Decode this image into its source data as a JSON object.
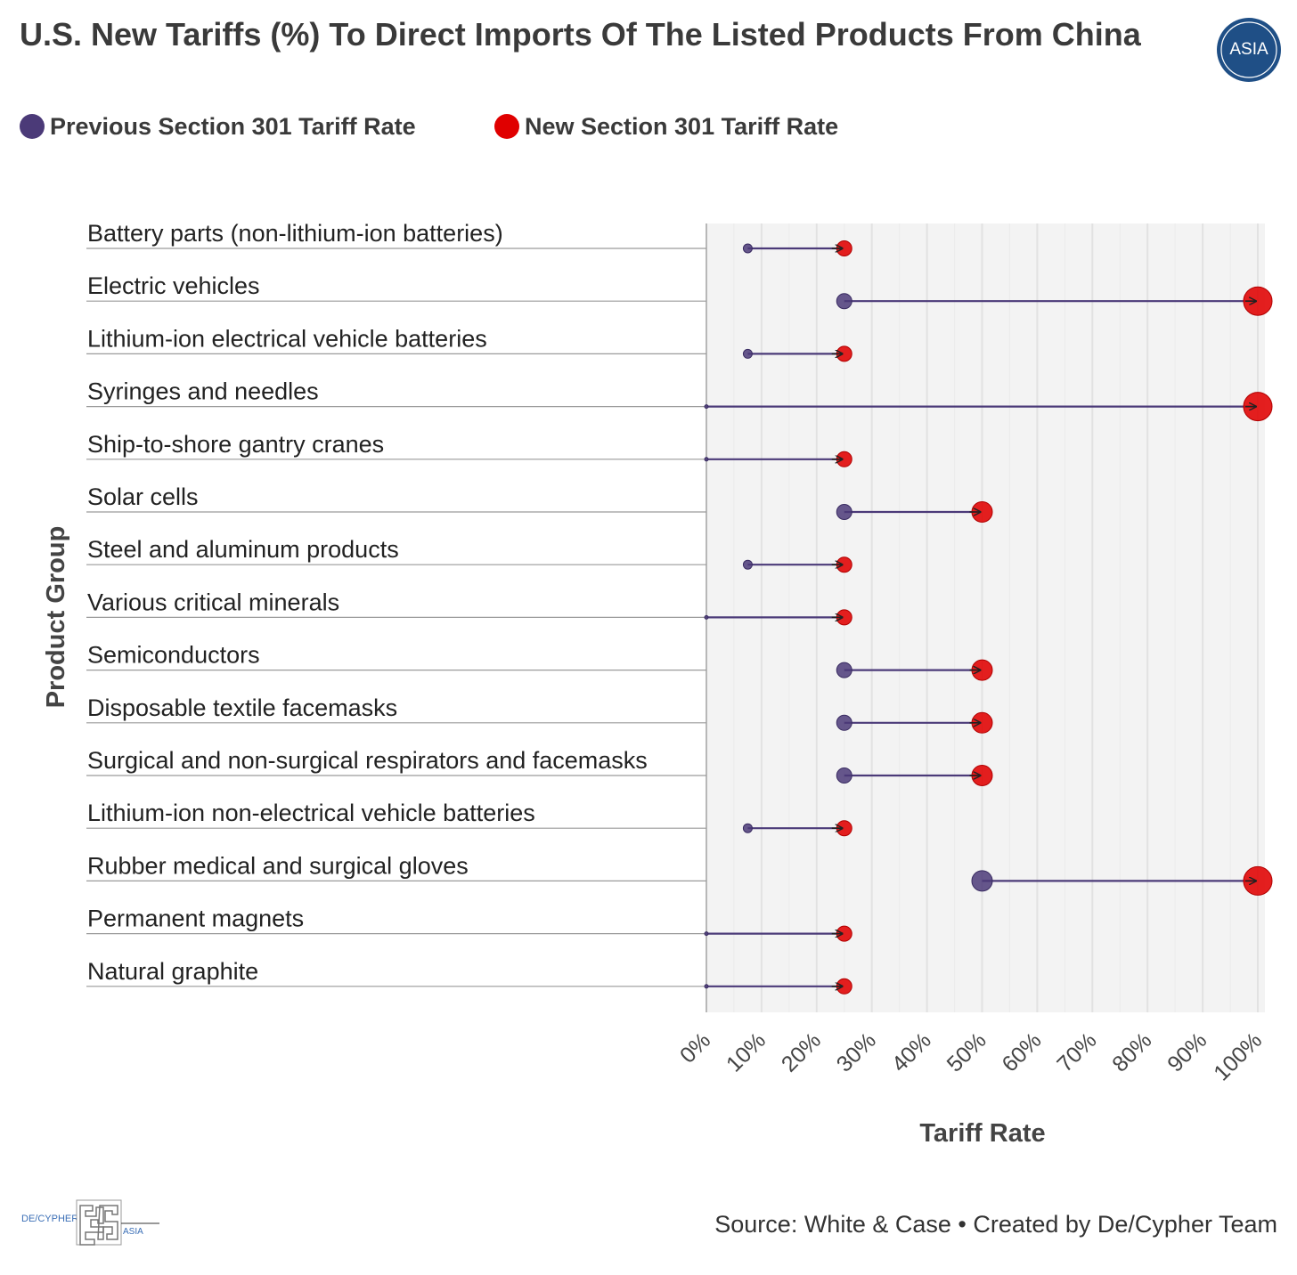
{
  "header": {
    "title": "U.S. New Tariffs (%) To Direct Imports Of The Listed Products From China",
    "logo_text": "ASIA"
  },
  "legend": [
    {
      "label": "Previous Section 301 Tariff Rate",
      "color": "#4b3a78"
    },
    {
      "label": "New Section 301 Tariff Rate",
      "color": "#e00000"
    }
  ],
  "chart_data": {
    "type": "dumbbell",
    "title": "U.S. New Tariffs (%) To Direct Imports Of The Listed Products From China",
    "xlabel": "Tariff Rate",
    "ylabel": "Product Group",
    "xlim": [
      0,
      100
    ],
    "x_ticks": [
      "0%",
      "10%",
      "20%",
      "30%",
      "40%",
      "50%",
      "60%",
      "70%",
      "80%",
      "90%",
      "100%"
    ],
    "categories": [
      "Battery parts (non-lithium-ion batteries)",
      "Electric vehicles",
      "Lithium-ion electrical vehicle batteries",
      "Syringes and needles",
      "Ship-to-shore gantry cranes",
      "Solar cells",
      "Steel and aluminum products",
      "Various critical minerals",
      "Semiconductors",
      "Disposable textile facemasks",
      "Surgical and non-surgical respirators and facemasks",
      "Lithium-ion non-electrical vehicle batteries",
      "Rubber medical and surgical gloves",
      "Permanent magnets",
      "Natural graphite"
    ],
    "series": [
      {
        "name": "Previous Section 301 Tariff Rate",
        "color": "#4b3a78",
        "values": [
          7.5,
          25,
          7.5,
          0,
          0,
          25,
          7.5,
          0,
          25,
          25,
          25,
          7.5,
          50,
          0,
          0
        ]
      },
      {
        "name": "New Section 301 Tariff Rate",
        "color": "#e00000",
        "values": [
          25,
          100,
          25,
          100,
          25,
          50,
          25,
          25,
          50,
          50,
          50,
          25,
          100,
          25,
          25
        ]
      }
    ],
    "grid": true,
    "legend_position": "top-left"
  },
  "footer": {
    "source": "Source: White & Case • Created by De/Cypher Team",
    "brand_left": "DE/CYPHER",
    "brand_right": "ASIA"
  }
}
